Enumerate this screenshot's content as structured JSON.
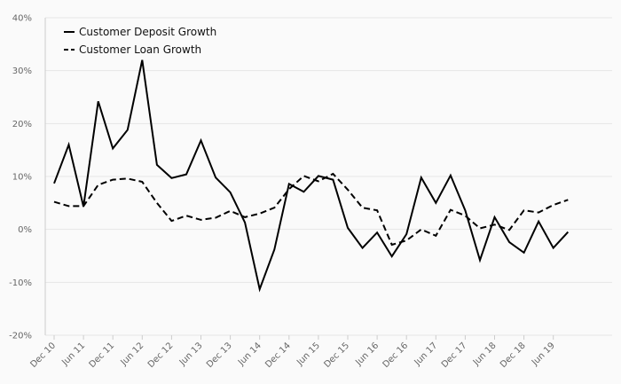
{
  "chart_data": {
    "type": "line",
    "title": "",
    "xlabel": "",
    "ylabel": "",
    "ylim": [
      -20,
      40
    ],
    "yticks": [
      {
        "value": -20,
        "label": "-20%"
      },
      {
        "value": -10,
        "label": "-10%"
      },
      {
        "value": 0,
        "label": "0%"
      },
      {
        "value": 10,
        "label": "10%"
      },
      {
        "value": 20,
        "label": "20%"
      },
      {
        "value": 30,
        "label": "30%"
      },
      {
        "value": 40,
        "label": "40%"
      }
    ],
    "x": [
      "Dec 10",
      "Mar 11",
      "Jun 11",
      "Sep 11",
      "Dec 11",
      "Mar 12",
      "Jun 12",
      "Sep 12",
      "Dec 12",
      "Mar 13",
      "Jun 13",
      "Sep 13",
      "Dec 13",
      "Mar 14",
      "Jun 14",
      "Sep 14",
      "Dec 14",
      "Mar 15",
      "Jun 15",
      "Sep 15",
      "Dec 15",
      "Mar 16",
      "Jun 16",
      "Sep 16",
      "Dec 16",
      "Mar 17",
      "Jun 17",
      "Sep 17",
      "Dec 17",
      "Mar 18",
      "Jun 18",
      "Sep 18",
      "Dec 18",
      "Mar 19",
      "Jun 19",
      "Sep 19"
    ],
    "x_tick_labels": [
      "Dec 10",
      "Jun 11",
      "Dec 11",
      "Jun 12",
      "Dec 12",
      "Jun 13",
      "Dec 13",
      "Jun 14",
      "Dec 14",
      "Jun 15",
      "Dec 15",
      "Jun 16",
      "Dec 16",
      "Jun 17",
      "Dec 17",
      "Jun 18",
      "Dec 18",
      "Jun 19"
    ],
    "legend_position": "top-left",
    "grid": true,
    "series": [
      {
        "name": "Customer Deposit Growth",
        "style": "solid",
        "color": "#000000",
        "values": [
          8.7,
          16.0,
          4.3,
          24.2,
          15.3,
          18.8,
          32.0,
          12.2,
          9.7,
          10.4,
          16.8,
          9.8,
          7.0,
          1.3,
          -11.3,
          -3.8,
          8.6,
          7.1,
          10.1,
          9.4,
          0.3,
          -3.5,
          -0.6,
          -5.1,
          -0.9,
          9.8,
          5.0,
          10.2,
          3.6,
          -5.8,
          2.3,
          -2.4,
          -4.4,
          1.5,
          -3.5,
          -0.5
        ]
      },
      {
        "name": "Customer Loan Growth",
        "style": "dashed",
        "color": "#000000",
        "values": [
          5.2,
          4.4,
          4.4,
          8.4,
          9.4,
          9.6,
          9.0,
          5.0,
          1.6,
          2.6,
          1.8,
          2.2,
          3.5,
          2.3,
          3.0,
          4.1,
          7.6,
          10.1,
          9.1,
          10.5,
          7.5,
          4.1,
          3.6,
          -2.9,
          -2.1,
          0.0,
          -1.2,
          3.7,
          2.6,
          0.2,
          0.9,
          -0.1,
          3.6,
          3.2,
          4.6,
          5.6
        ]
      }
    ]
  }
}
